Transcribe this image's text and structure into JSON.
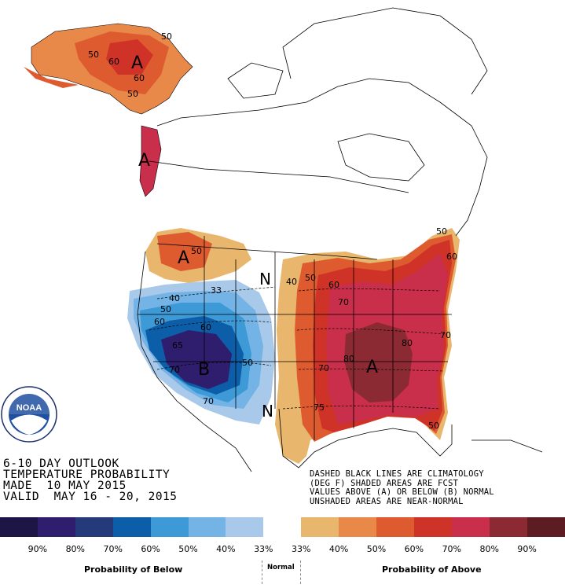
{
  "map": {
    "large_labels": [
      {
        "key": "ak",
        "text": "A"
      },
      {
        "key": "nw",
        "text": "A"
      },
      {
        "key": "pnw",
        "text": "A"
      },
      {
        "key": "sw",
        "text": "B"
      },
      {
        "key": "se",
        "text": "A"
      },
      {
        "key": "n_upper",
        "text": "N"
      },
      {
        "key": "n_lower",
        "text": "N"
      }
    ],
    "contour_labels": [
      "50",
      "60",
      "50",
      "60",
      "50",
      "50",
      "33",
      "40",
      "50",
      "60",
      "65",
      "70",
      "70",
      "60",
      "50",
      "40",
      "50",
      "60",
      "70",
      "80",
      "80",
      "70",
      "75",
      "50",
      "60",
      "70",
      "50"
    ]
  },
  "logo": {
    "text": "NOAA",
    "ring_text": "NATIONAL OCEANIC AND ATMOSPHERIC ADMINISTRATION · U.S. DEPARTMENT OF COMMERCE"
  },
  "title": {
    "line1": "6-10 DAY OUTLOOK",
    "line2": "TEMPERATURE PROBABILITY",
    "line3": "MADE  10 MAY 2015",
    "line4": "VALID  MAY 16 - 20, 2015"
  },
  "notes": {
    "line1": "DASHED BLACK LINES ARE CLIMATOLOGY",
    "line2": "(DEG F) SHADED AREAS ARE FCST",
    "line3": "VALUES ABOVE (A) OR BELOW (B) NORMAL",
    "line4": "UNSHADED AREAS ARE NEAR-NORMAL"
  },
  "legend": {
    "swatches": [
      {
        "color": "#1c1545"
      },
      {
        "color": "#2f1d6e"
      },
      {
        "color": "#243a7a"
      },
      {
        "color": "#0d5ea8"
      },
      {
        "color": "#3d9ad6"
      },
      {
        "color": "#73b3e6"
      },
      {
        "color": "#a9c9ea"
      },
      {
        "color": "#ffffff"
      },
      {
        "color": "#e8b66c"
      },
      {
        "color": "#e8894a"
      },
      {
        "color": "#de5a2f"
      },
      {
        "color": "#cf3226"
      },
      {
        "color": "#c92e4b"
      },
      {
        "color": "#8c2a33"
      },
      {
        "color": "#5d1b22"
      }
    ],
    "percent_labels": [
      "90%",
      "80%",
      "70%",
      "60%",
      "50%",
      "40%",
      "33%",
      "33%",
      "40%",
      "50%",
      "60%",
      "70%",
      "80%",
      "90%"
    ],
    "below_caption": "Probability of Below",
    "normal_caption": "Normal",
    "above_caption": "Probability of Above"
  }
}
